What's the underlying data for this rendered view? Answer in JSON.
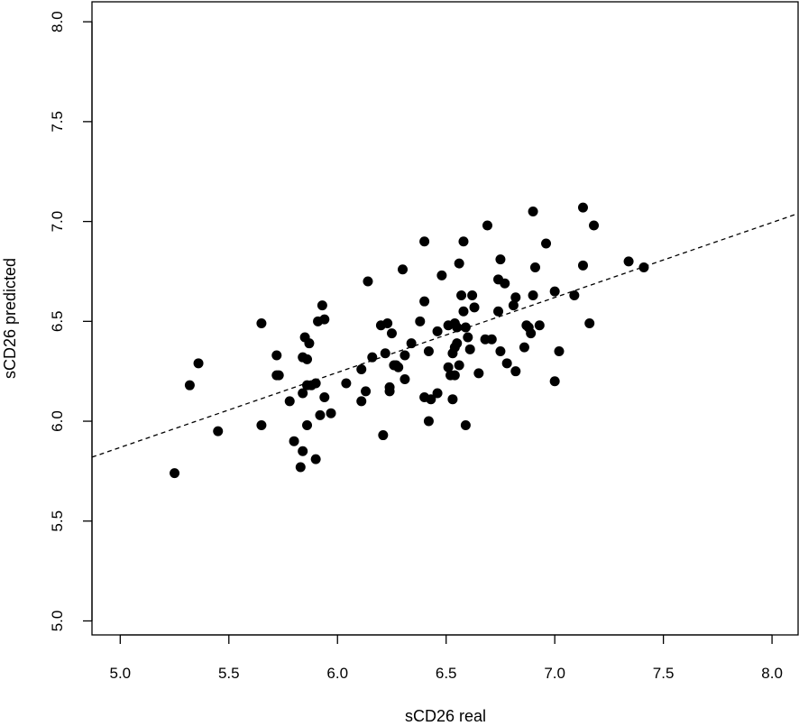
{
  "chart_data": {
    "type": "scatter",
    "xlabel": "sCD26 real",
    "ylabel": "sCD26 predicted",
    "xlim": [
      4.87,
      8.12
    ],
    "ylim": [
      4.93,
      8.1
    ],
    "x_ticks": [
      "5.0",
      "5.5",
      "6.0",
      "6.5",
      "7.0",
      "7.5",
      "8.0"
    ],
    "y_ticks": [
      "5.0",
      "5.5",
      "6.0",
      "6.5",
      "7.0",
      "7.5",
      "8.0"
    ],
    "grid": false,
    "legend": "none",
    "point_color": "#000000",
    "fit_line": {
      "style": "dashed",
      "x": [
        4.87,
        8.12
      ],
      "y": [
        5.82,
        7.04
      ]
    },
    "points": [
      [
        5.25,
        5.74
      ],
      [
        5.32,
        6.18
      ],
      [
        5.36,
        6.29
      ],
      [
        5.45,
        5.95
      ],
      [
        5.65,
        6.49
      ],
      [
        5.65,
        5.98
      ],
      [
        5.72,
        6.33
      ],
      [
        5.72,
        6.23
      ],
      [
        5.73,
        6.23
      ],
      [
        5.78,
        6.1
      ],
      [
        5.8,
        5.9
      ],
      [
        5.83,
        5.77
      ],
      [
        5.84,
        5.85
      ],
      [
        5.84,
        6.32
      ],
      [
        5.84,
        6.14
      ],
      [
        5.85,
        6.42
      ],
      [
        5.86,
        6.31
      ],
      [
        5.86,
        6.18
      ],
      [
        5.87,
        6.39
      ],
      [
        5.86,
        5.98
      ],
      [
        5.88,
        6.18
      ],
      [
        5.9,
        5.81
      ],
      [
        5.9,
        6.19
      ],
      [
        5.91,
        6.5
      ],
      [
        5.92,
        6.03
      ],
      [
        5.93,
        6.58
      ],
      [
        5.94,
        6.51
      ],
      [
        5.94,
        6.12
      ],
      [
        5.97,
        6.04
      ],
      [
        6.04,
        6.19
      ],
      [
        6.11,
        6.26
      ],
      [
        6.11,
        6.1
      ],
      [
        6.13,
        6.15
      ],
      [
        6.14,
        6.7
      ],
      [
        6.16,
        6.32
      ],
      [
        6.2,
        6.48
      ],
      [
        6.21,
        5.93
      ],
      [
        6.22,
        6.34
      ],
      [
        6.23,
        6.49
      ],
      [
        6.24,
        6.17
      ],
      [
        6.24,
        6.15
      ],
      [
        6.25,
        6.44
      ],
      [
        6.26,
        6.28
      ],
      [
        6.27,
        6.28
      ],
      [
        6.28,
        6.27
      ],
      [
        6.3,
        6.76
      ],
      [
        6.31,
        6.33
      ],
      [
        6.31,
        6.21
      ],
      [
        6.34,
        6.39
      ],
      [
        6.38,
        6.5
      ],
      [
        6.4,
        6.9
      ],
      [
        6.4,
        6.6
      ],
      [
        6.4,
        6.12
      ],
      [
        6.42,
        6.35
      ],
      [
        6.42,
        6.0
      ],
      [
        6.43,
        6.11
      ],
      [
        6.46,
        6.45
      ],
      [
        6.46,
        6.14
      ],
      [
        6.48,
        6.73
      ],
      [
        6.51,
        6.48
      ],
      [
        6.51,
        6.27
      ],
      [
        6.52,
        6.23
      ],
      [
        6.53,
        6.11
      ],
      [
        6.53,
        6.34
      ],
      [
        6.54,
        6.37
      ],
      [
        6.54,
        6.49
      ],
      [
        6.54,
        6.23
      ],
      [
        6.55,
        6.47
      ],
      [
        6.55,
        6.39
      ],
      [
        6.56,
        6.28
      ],
      [
        6.56,
        6.79
      ],
      [
        6.57,
        6.63
      ],
      [
        6.58,
        6.9
      ],
      [
        6.58,
        6.55
      ],
      [
        6.59,
        6.47
      ],
      [
        6.59,
        5.98
      ],
      [
        6.6,
        6.42
      ],
      [
        6.61,
        6.36
      ],
      [
        6.62,
        6.63
      ],
      [
        6.63,
        6.57
      ],
      [
        6.65,
        6.24
      ],
      [
        6.68,
        6.41
      ],
      [
        6.69,
        6.98
      ],
      [
        6.71,
        6.41
      ],
      [
        6.74,
        6.71
      ],
      [
        6.74,
        6.55
      ],
      [
        6.75,
        6.35
      ],
      [
        6.75,
        6.81
      ],
      [
        6.77,
        6.69
      ],
      [
        6.78,
        6.29
      ],
      [
        6.81,
        6.58
      ],
      [
        6.82,
        6.62
      ],
      [
        6.82,
        6.25
      ],
      [
        6.86,
        6.37
      ],
      [
        6.87,
        6.48
      ],
      [
        6.88,
        6.47
      ],
      [
        6.89,
        6.44
      ],
      [
        6.9,
        6.63
      ],
      [
        6.9,
        7.05
      ],
      [
        6.91,
        6.77
      ],
      [
        6.93,
        6.48
      ],
      [
        6.96,
        6.89
      ],
      [
        7.0,
        6.65
      ],
      [
        7.0,
        6.2
      ],
      [
        7.02,
        6.35
      ],
      [
        7.09,
        6.63
      ],
      [
        7.13,
        6.78
      ],
      [
        7.13,
        7.07
      ],
      [
        7.16,
        6.49
      ],
      [
        7.18,
        6.98
      ],
      [
        7.34,
        6.8
      ],
      [
        7.41,
        6.77
      ]
    ]
  }
}
